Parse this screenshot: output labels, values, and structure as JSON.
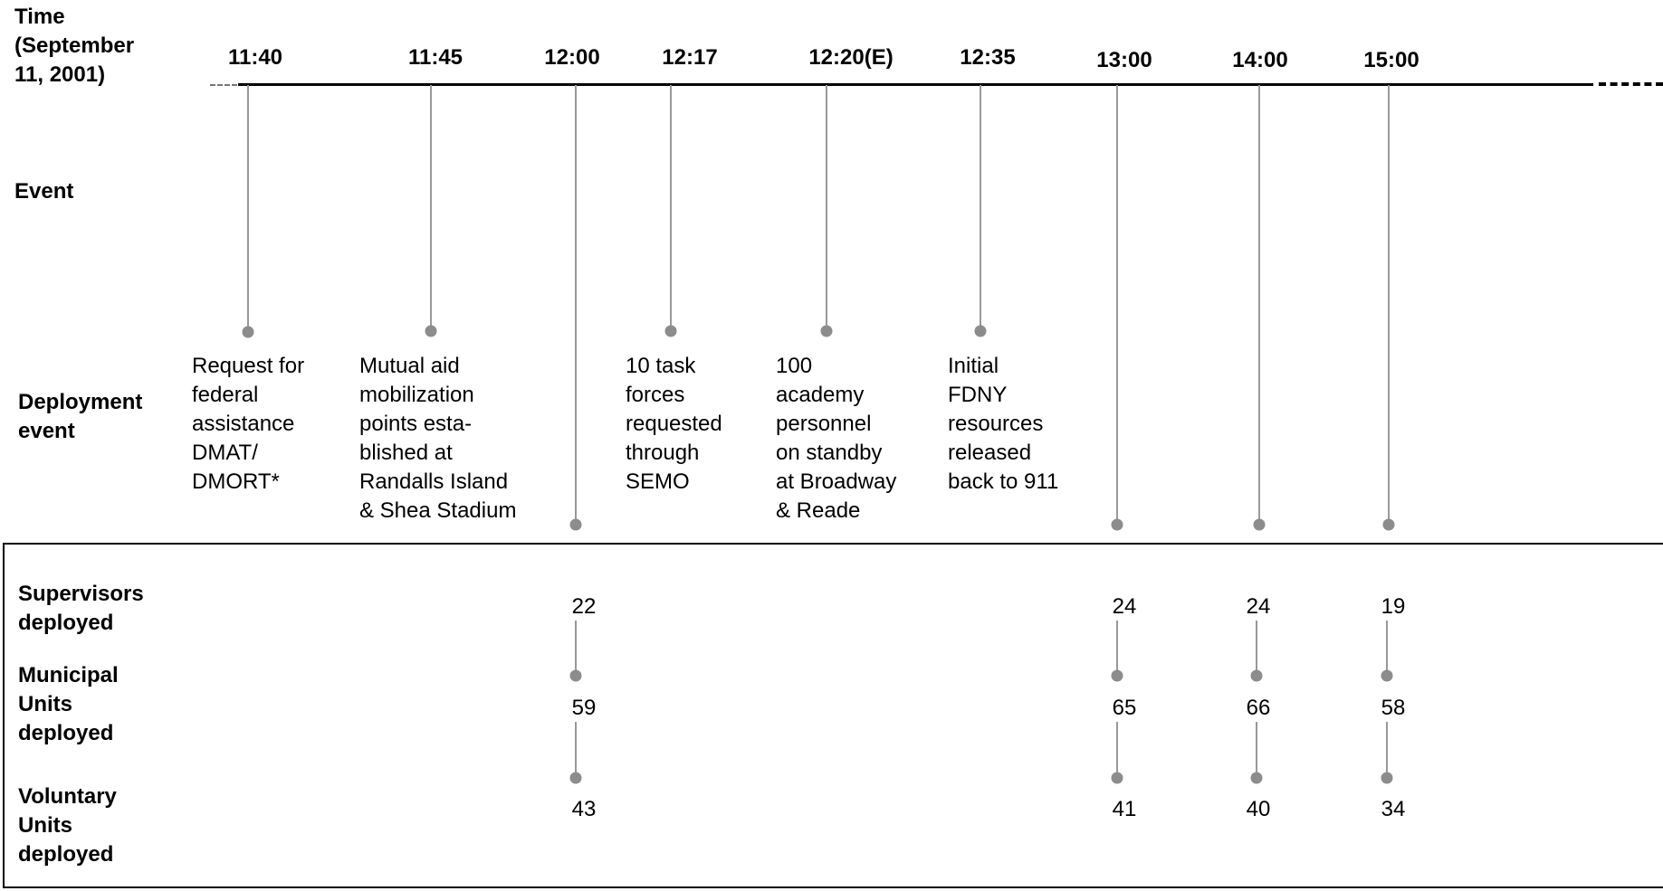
{
  "labels": {
    "time": "Time\n(September\n11, 2001)",
    "event": "Event",
    "deployment_event": "Deployment\nevent",
    "supervisors": "Supervisors\ndeployed",
    "municipal": "Municipal\nUnits\ndeployed",
    "voluntary": "Voluntary\nUnits\ndeployed"
  },
  "ticks": [
    "11:40",
    "11:45",
    "12:00",
    "12:17",
    "12:20(E)",
    "12:35",
    "13:00",
    "14:00",
    "15:00"
  ],
  "events": [
    {
      "time": "11:40",
      "text": "Request for\nfederal\nassistance\nDMAT/\nDMORT*"
    },
    {
      "time": "11:45",
      "text": "Mutual aid\nmobilization\npoints esta-\nblished at\nRandalls Island\n& Shea Stadium"
    },
    {
      "time": "12:17",
      "text": "10 task\nforces\nrequested\nthrough\nSEMO"
    },
    {
      "time": "12:20(E)",
      "text": "100\nacademy\npersonnel\non standby\nat Broadway\n& Reade"
    },
    {
      "time": "12:35",
      "text": "Initial\nFDNY\nresources\nreleased\nback to 911"
    }
  ],
  "deployments": [
    {
      "time": "12:00",
      "supervisors": "22",
      "municipal": "59",
      "voluntary": "43"
    },
    {
      "time": "13:00",
      "supervisors": "24",
      "municipal": "65",
      "voluntary": "41"
    },
    {
      "time": "14:00",
      "supervisors": "24",
      "municipal": "66",
      "voluntary": "40"
    },
    {
      "time": "15:00",
      "supervisors": "19",
      "municipal": "58",
      "voluntary": "34"
    }
  ],
  "colors": {
    "connector": "#999999",
    "dot": "#8c8c8c",
    "axis": "#000000"
  }
}
